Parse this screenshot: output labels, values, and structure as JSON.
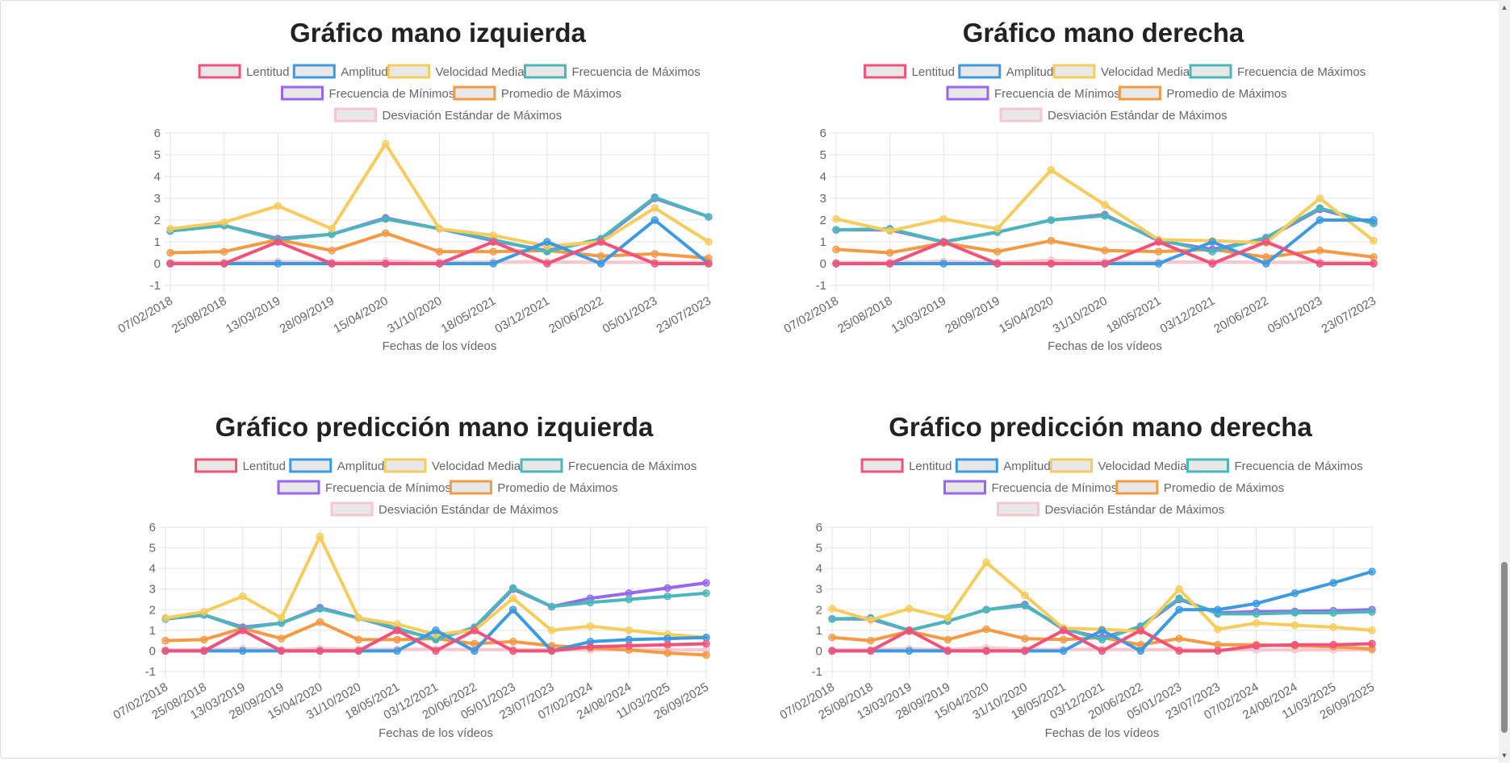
{
  "legend_colors": {
    "Lentitud": "#f0527a",
    "Amplitud": "#3b9ae1",
    "Velocidad Media": "#f6cd5d",
    "Frecuencia de Máximos": "#4bb7bb",
    "Frecuencia de Mínimos": "#9966f0",
    "Promedio de Máximos": "#f39a45",
    "Desviación Estándar de Máximos": "#f7c6d0"
  },
  "scrollbar": {
    "up_icon": "triangle-up-icon",
    "down_icon": "triangle-down-icon"
  },
  "chart_data": [
    {
      "type": "line",
      "title": "Gráfico mano izquierda",
      "xlabel": "Fechas de los vídeos",
      "ylabel": "",
      "ylim": [
        -1,
        6
      ],
      "yticks": [
        "-1",
        "0",
        "1",
        "2",
        "3",
        "4",
        "5",
        "6"
      ],
      "grid": true,
      "legend_position": "top",
      "categories": [
        "07/02/2018",
        "25/08/2018",
        "13/03/2019",
        "28/09/2019",
        "15/04/2020",
        "31/10/2020",
        "18/05/2021",
        "03/12/2021",
        "20/06/2022",
        "05/01/2023",
        "23/07/2023"
      ],
      "series": [
        {
          "name": "Lentitud",
          "values": [
            0,
            0,
            1,
            0,
            0,
            0,
            1,
            0,
            1,
            0,
            0
          ]
        },
        {
          "name": "Amplitud",
          "values": [
            0,
            0,
            0,
            0,
            0,
            0,
            0,
            1,
            0,
            2,
            0
          ]
        },
        {
          "name": "Velocidad Media",
          "values": [
            1.6,
            1.9,
            2.65,
            1.6,
            5.5,
            1.6,
            1.3,
            0.8,
            1.0,
            2.55,
            1.0
          ]
        },
        {
          "name": "Frecuencia de Máximos",
          "values": [
            1.5,
            1.75,
            1.1,
            1.35,
            2.05,
            1.6,
            1.1,
            0.55,
            1.15,
            3.05,
            2.15
          ]
        },
        {
          "name": "Frecuencia de Mínimos",
          "values": [
            1.5,
            1.75,
            1.15,
            1.35,
            2.1,
            1.6,
            1.05,
            0.6,
            1.1,
            3.0,
            2.15
          ]
        },
        {
          "name": "Promedio de Máximos",
          "values": [
            0.5,
            0.55,
            1.1,
            0.6,
            1.4,
            0.55,
            0.55,
            0.6,
            0.35,
            0.45,
            0.25
          ]
        },
        {
          "name": "Desviación Estándar de Máximos",
          "values": [
            0.05,
            0.06,
            0.1,
            0.06,
            0.12,
            0.07,
            0.08,
            0.08,
            0.06,
            0.07,
            0.05
          ]
        }
      ]
    },
    {
      "type": "line",
      "title": "Gráfico mano derecha",
      "xlabel": "Fechas de los vídeos",
      "ylabel": "",
      "ylim": [
        -1,
        6
      ],
      "yticks": [
        "-1",
        "0",
        "1",
        "2",
        "3",
        "4",
        "5",
        "6"
      ],
      "grid": true,
      "legend_position": "top",
      "categories": [
        "07/02/2018",
        "25/08/2018",
        "13/03/2019",
        "28/09/2019",
        "15/04/2020",
        "31/10/2020",
        "18/05/2021",
        "03/12/2021",
        "20/06/2022",
        "05/01/2023",
        "23/07/2023"
      ],
      "series": [
        {
          "name": "Lentitud",
          "values": [
            0,
            0,
            1,
            0,
            0,
            0,
            1,
            0,
            1,
            0,
            0
          ]
        },
        {
          "name": "Amplitud",
          "values": [
            0,
            0,
            0,
            0,
            0,
            0,
            0,
            1,
            0,
            2,
            2
          ]
        },
        {
          "name": "Velocidad Media",
          "values": [
            2.05,
            1.5,
            2.05,
            1.6,
            4.3,
            2.7,
            1.1,
            1.05,
            0.95,
            3.0,
            1.05
          ]
        },
        {
          "name": "Frecuencia de Máximos",
          "values": [
            1.55,
            1.6,
            1.0,
            1.45,
            2.0,
            2.2,
            1.1,
            0.55,
            1.2,
            2.55,
            1.85
          ]
        },
        {
          "name": "Frecuencia de Mínimos",
          "values": [
            1.55,
            1.55,
            1.0,
            1.45,
            2.0,
            2.25,
            1.05,
            0.65,
            1.15,
            2.5,
            1.85
          ]
        },
        {
          "name": "Promedio de Máximos",
          "values": [
            0.65,
            0.5,
            0.95,
            0.55,
            1.05,
            0.6,
            0.55,
            0.65,
            0.3,
            0.6,
            0.3
          ]
        },
        {
          "name": "Desviación Estándar de Máximos",
          "values": [
            0.05,
            0.06,
            0.1,
            0.06,
            0.15,
            0.08,
            0.07,
            0.08,
            0.06,
            0.07,
            0.05
          ]
        }
      ]
    },
    {
      "type": "line",
      "title": "Gráfico predicción mano izquierda",
      "xlabel": "Fechas de los vídeos",
      "ylabel": "",
      "ylim": [
        -1,
        6
      ],
      "yticks": [
        "-1",
        "0",
        "1",
        "2",
        "3",
        "4",
        "5",
        "6"
      ],
      "grid": true,
      "legend_position": "top",
      "categories": [
        "07/02/2018",
        "25/08/2018",
        "13/03/2019",
        "28/09/2019",
        "15/04/2020",
        "31/10/2020",
        "18/05/2021",
        "03/12/2021",
        "20/06/2022",
        "05/01/2023",
        "23/07/2023",
        "07/02/2024",
        "24/08/2024",
        "11/03/2025",
        "26/09/2025"
      ],
      "series": [
        {
          "name": "Lentitud",
          "values": [
            0,
            0,
            1,
            0,
            0,
            0,
            1,
            0,
            1,
            0,
            0,
            0.2,
            0.25,
            0.3,
            0.35
          ]
        },
        {
          "name": "Amplitud",
          "values": [
            0,
            0,
            0,
            0,
            0,
            0,
            0,
            1,
            0,
            2,
            0,
            0.45,
            0.55,
            0.6,
            0.65
          ]
        },
        {
          "name": "Velocidad Media",
          "values": [
            1.6,
            1.9,
            2.65,
            1.6,
            5.55,
            1.6,
            1.3,
            0.8,
            1.0,
            2.55,
            1.0,
            1.2,
            1.0,
            0.8,
            0.65
          ]
        },
        {
          "name": "Frecuencia de Máximos",
          "values": [
            1.55,
            1.75,
            1.1,
            1.35,
            2.05,
            1.6,
            1.1,
            0.55,
            1.15,
            3.05,
            2.15,
            2.35,
            2.5,
            2.65,
            2.8
          ]
        },
        {
          "name": "Frecuencia de Mínimos",
          "values": [
            1.55,
            1.75,
            1.15,
            1.35,
            2.1,
            1.6,
            1.05,
            0.6,
            1.1,
            3.0,
            2.15,
            2.55,
            2.8,
            3.05,
            3.3
          ]
        },
        {
          "name": "Promedio de Máximos",
          "values": [
            0.5,
            0.55,
            1.1,
            0.6,
            1.4,
            0.55,
            0.55,
            0.6,
            0.35,
            0.45,
            0.25,
            0.15,
            0.05,
            -0.1,
            -0.2
          ]
        },
        {
          "name": "Desviación Estándar de Máximos",
          "values": [
            0.05,
            0.06,
            0.1,
            0.06,
            0.12,
            0.07,
            0.08,
            0.08,
            0.06,
            0.07,
            0.05,
            0.05,
            0.05,
            0.05,
            0.05
          ]
        }
      ]
    },
    {
      "type": "line",
      "title": "Gráfico predicción mano derecha",
      "xlabel": "Fechas de los vídeos",
      "ylabel": "",
      "ylim": [
        -1,
        6
      ],
      "yticks": [
        "-1",
        "0",
        "1",
        "2",
        "3",
        "4",
        "5",
        "6"
      ],
      "grid": true,
      "legend_position": "top",
      "categories": [
        "07/02/2018",
        "25/08/2018",
        "13/03/2019",
        "28/09/2019",
        "15/04/2020",
        "31/10/2020",
        "18/05/2021",
        "03/12/2021",
        "20/06/2022",
        "05/01/2023",
        "23/07/2023",
        "07/02/2024",
        "24/08/2024",
        "11/03/2025",
        "26/09/2025"
      ],
      "series": [
        {
          "name": "Lentitud",
          "values": [
            0,
            0,
            1,
            0,
            0,
            0,
            1,
            0,
            1,
            0,
            0,
            0.25,
            0.3,
            0.3,
            0.35
          ]
        },
        {
          "name": "Amplitud",
          "values": [
            0,
            0,
            0,
            0,
            0,
            0,
            0,
            1,
            0,
            2,
            2,
            2.3,
            2.8,
            3.3,
            3.85
          ]
        },
        {
          "name": "Velocidad Media",
          "values": [
            2.05,
            1.5,
            2.05,
            1.6,
            4.3,
            2.7,
            1.1,
            1.05,
            0.95,
            3.0,
            1.05,
            1.35,
            1.25,
            1.15,
            1.0
          ]
        },
        {
          "name": "Frecuencia de Máximos",
          "values": [
            1.55,
            1.6,
            1.0,
            1.45,
            2.0,
            2.2,
            1.1,
            0.55,
            1.2,
            2.55,
            1.8,
            1.8,
            1.85,
            1.85,
            1.9
          ]
        },
        {
          "name": "Frecuencia de Mínimos",
          "values": [
            1.55,
            1.55,
            1.0,
            1.45,
            2.0,
            2.25,
            1.05,
            0.65,
            1.15,
            2.5,
            1.85,
            1.9,
            1.92,
            1.95,
            2.0
          ]
        },
        {
          "name": "Promedio de Máximos",
          "values": [
            0.65,
            0.5,
            0.95,
            0.55,
            1.05,
            0.6,
            0.55,
            0.65,
            0.3,
            0.6,
            0.3,
            0.3,
            0.25,
            0.2,
            0.1
          ]
        },
        {
          "name": "Desviación Estándar de Máximos",
          "values": [
            0.05,
            0.06,
            0.1,
            0.06,
            0.15,
            0.08,
            0.07,
            0.08,
            0.06,
            0.07,
            0.05,
            0.05,
            0.05,
            0.05,
            0.05
          ]
        }
      ]
    }
  ]
}
